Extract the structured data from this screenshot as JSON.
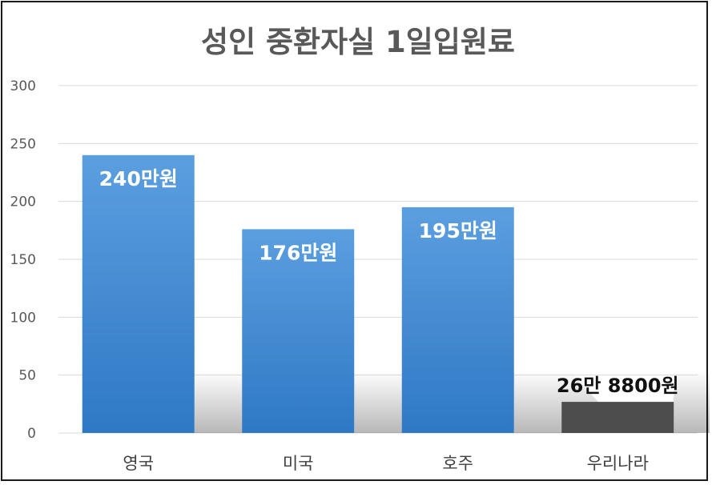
{
  "chart_data": {
    "type": "bar",
    "title": "성인 중환자실 1일입원료",
    "xlabel": "",
    "ylabel": "",
    "categories": [
      "영국",
      "미국",
      "호주",
      "우리나라"
    ],
    "values": [
      240,
      176,
      195,
      26.88
    ],
    "data_labels": [
      "240만원",
      "176만원",
      "195만원",
      "26만 8800원"
    ],
    "yticks": [
      "0",
      "50",
      "100",
      "150",
      "200",
      "250",
      "300"
    ],
    "ylim": [
      0,
      300
    ],
    "grid": true,
    "legend": "none",
    "colors": {
      "bar": "#3a86d0",
      "bar_highlight": "#4d4d4d",
      "grid": "#d9d9d9",
      "title": "#595959"
    }
  }
}
